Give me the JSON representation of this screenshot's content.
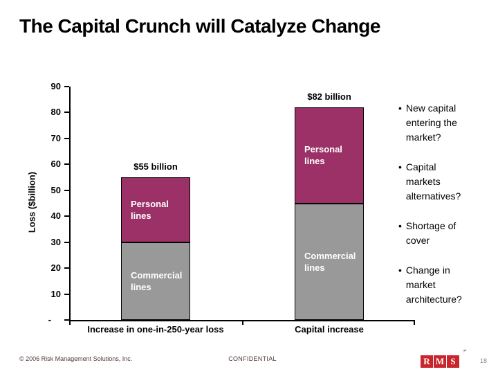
{
  "slide": {
    "title": "The Capital Crunch will Catalyze Change"
  },
  "chart_data": {
    "type": "bar",
    "stacked": true,
    "title": "",
    "xlabel": "",
    "ylabel": "Loss ($billion)",
    "ylim": [
      0,
      90
    ],
    "grid": false,
    "categories": [
      "Increase in one-in-250-year loss",
      "Capital increase"
    ],
    "series": [
      {
        "name": "Commercial lines",
        "values": [
          30,
          45
        ],
        "color": "#999999"
      },
      {
        "name": "Personal lines",
        "values": [
          25,
          37
        ],
        "color": "#9b3166"
      }
    ],
    "totals_labels": [
      "$55 billion",
      "$82 billion"
    ],
    "y_ticks": [
      {
        "label": "90",
        "value": 90
      },
      {
        "label": "80",
        "value": 80
      },
      {
        "label": "70",
        "value": 70
      },
      {
        "label": "60",
        "value": 60
      },
      {
        "label": "50",
        "value": 50
      },
      {
        "label": "40",
        "value": 40
      },
      {
        "label": "30",
        "value": 30
      },
      {
        "label": "20",
        "value": 20
      },
      {
        "label": "10",
        "value": 10
      },
      {
        "label": "-",
        "value": 0
      }
    ]
  },
  "bullets": [
    "New capital\nentering the\nmarket?",
    "Capital\nmarkets\nalternatives?",
    "Shortage of\ncover",
    "Change in\nmarket\narchitecture?"
  ],
  "footer": {
    "copyright": "© 2006 Risk Management Solutions, Inc.",
    "confidential": "CONFIDENTIAL",
    "logo_letters": [
      "R",
      "M",
      "S"
    ],
    "page_number": "18"
  },
  "colors": {
    "personal_lines": "#9b3166",
    "commercial_lines": "#999999",
    "logo_red": "#c9252c",
    "footer_text": "#4e3d38"
  }
}
